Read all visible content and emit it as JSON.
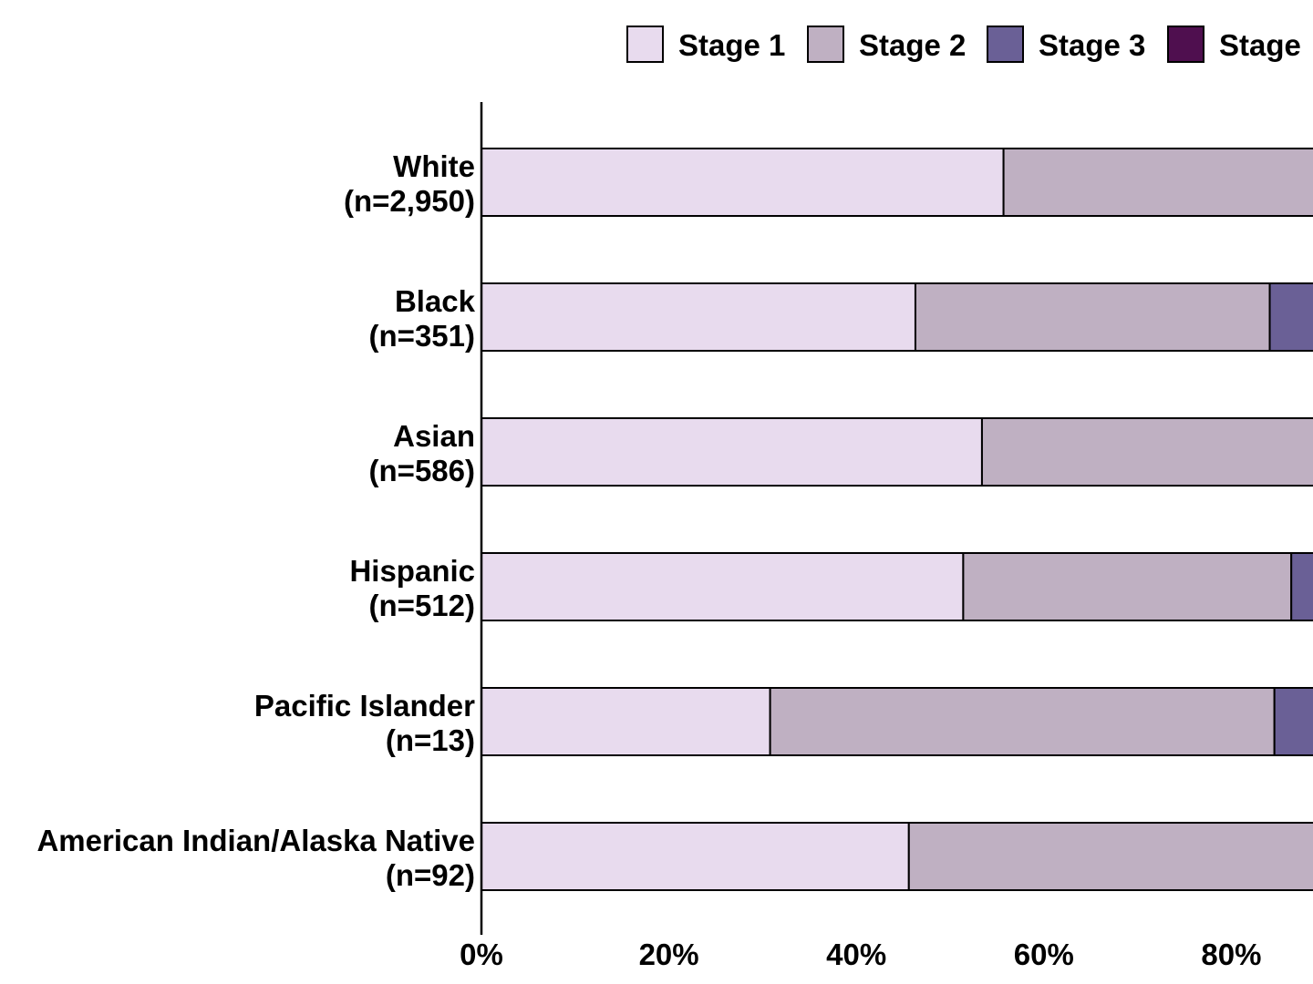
{
  "chart_data": {
    "type": "bar",
    "orientation": "horizontal",
    "stacked": true,
    "categories": [
      {
        "name": "White",
        "n": "(n=2,950)"
      },
      {
        "name": "Black",
        "n": "(n=351)"
      },
      {
        "name": "Asian",
        "n": "(n=586)"
      },
      {
        "name": "Hispanic",
        "n": "(n=512)"
      },
      {
        "name": "Pacific Islander",
        "n": "(n=13)"
      },
      {
        "name": "American Indian/Alaska Native",
        "n": "(n=92)"
      }
    ],
    "series": [
      {
        "name": "Stage 1",
        "color": "#E8DBEE",
        "values": [
          55.7,
          46.3,
          53.4,
          51.4,
          30.8,
          45.6
        ]
      },
      {
        "name": "Stage 2",
        "color": "#BFB0C2",
        "values": [
          44.3,
          37.8,
          46.6,
          35.0,
          53.8,
          54.4
        ]
      },
      {
        "name": "Stage 3",
        "color": "#6A6096",
        "values": [
          0,
          15.9,
          0,
          13.6,
          15.4,
          0
        ]
      },
      {
        "name": "Stage",
        "color": "#4F0F4F",
        "values": [
          0,
          0,
          0,
          0,
          0,
          0
        ]
      }
    ],
    "x_ticks": [
      "0%",
      "20%",
      "40%",
      "60%",
      "80%"
    ],
    "xlim": [
      0,
      100
    ],
    "legend_position": "top-right",
    "grid": false,
    "title": "",
    "xlabel": "",
    "ylabel": ""
  }
}
